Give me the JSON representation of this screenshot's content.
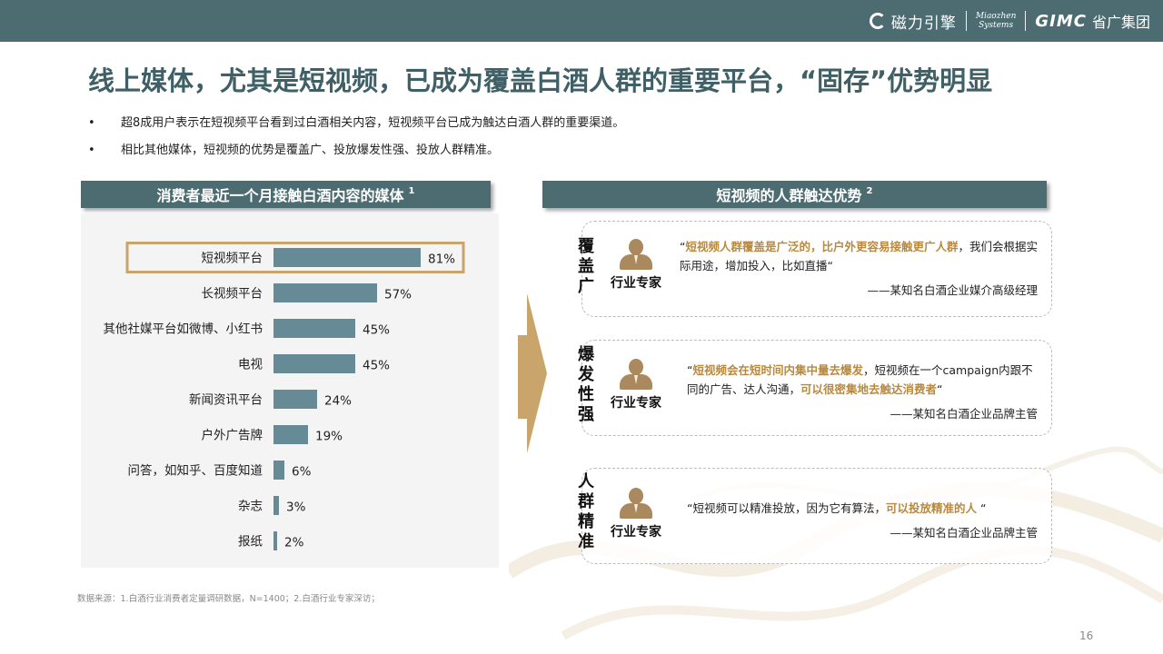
{
  "brand": {
    "name_cn": "磁力引擎",
    "miaozhen_line1": "Miaozhen",
    "miaozhen_line2": "Systems",
    "gimc": "GIMC",
    "gimc_cn": "省广集团"
  },
  "title": "线上媒体，尤其是短视频，已成为覆盖白酒人群的重要平台，“固存”优势明显",
  "bullets": [
    {
      "marker": "•",
      "text": "超8成用户表示在短视频平台看到过白酒相关内容，短视频平台已成为触达白酒人群的重要渠道。"
    },
    {
      "marker": "•",
      "text": "相比其他媒体，短视频的优势是覆盖广、投放爆发性强、投放人群精准。"
    }
  ],
  "left_header": {
    "text": "消费者最近一个月接触白酒内容的媒体",
    "sup": "1"
  },
  "right_header": {
    "text": "短视频的人群触达优势",
    "sup": "2"
  },
  "chart_data": {
    "type": "bar",
    "orientation": "horizontal",
    "categories": [
      "短视频平台",
      "长视频平台",
      "其他社媒平台如微博、小红书",
      "电视",
      "新闻资讯平台",
      "户外广告牌",
      "问答，如知乎、百度知道",
      "杂志",
      "报纸"
    ],
    "values": [
      81,
      57,
      45,
      45,
      24,
      19,
      6,
      3,
      2
    ],
    "value_labels": [
      "81%",
      "57%",
      "45%",
      "45%",
      "24%",
      "19%",
      "6%",
      "3%",
      "2%"
    ],
    "highlighted_category": "短视频平台",
    "xlim": [
      0,
      100
    ],
    "bar_color": "#668a96",
    "highlight_color": "#c9a56b",
    "grid": false,
    "title": "",
    "xlabel": "",
    "ylabel": ""
  },
  "advantages": [
    {
      "label": "覆盖广",
      "expert": "行业专家",
      "quote": [
        {
          "t": "“",
          "hl": false
        },
        {
          "t": "短视频人群覆盖是广泛的，比户外更容易接触更广人群",
          "hl": true
        },
        {
          "t": "，我们会根据实际用途，增加投入，比如直播“",
          "hl": false
        }
      ],
      "source": "——某知名白酒企业媒介高级经理"
    },
    {
      "label": "爆发性强",
      "expert": "行业专家",
      "quote": [
        {
          "t": "“",
          "hl": false
        },
        {
          "t": "短视频会在短时间内集中量去爆发",
          "hl": true
        },
        {
          "t": "，短视频在一个campaign内跟不同的广告、达人沟通，",
          "hl": false
        },
        {
          "t": "可以很密集地去触达消费者",
          "hl": true
        },
        {
          "t": "“",
          "hl": false
        }
      ],
      "source": "——某知名白酒企业品牌主管"
    },
    {
      "label": "人群精准",
      "expert": "行业专家",
      "quote": [
        {
          "t": "“短视频可以精准投放，因为它有算法，",
          "hl": false
        },
        {
          "t": "可以投放精准的人",
          "hl": true
        },
        {
          "t": " “",
          "hl": false
        }
      ],
      "source": "——某知名白酒企业品牌主管"
    }
  ],
  "footnote": "数据来源：1.白酒行业消费者定量调研数据，N=1400；2.白酒行业专家深访；",
  "page_number": "16",
  "colors": {
    "primary": "#4d6c72",
    "accent": "#c9a56b",
    "highlight_text": "#b8893e"
  }
}
